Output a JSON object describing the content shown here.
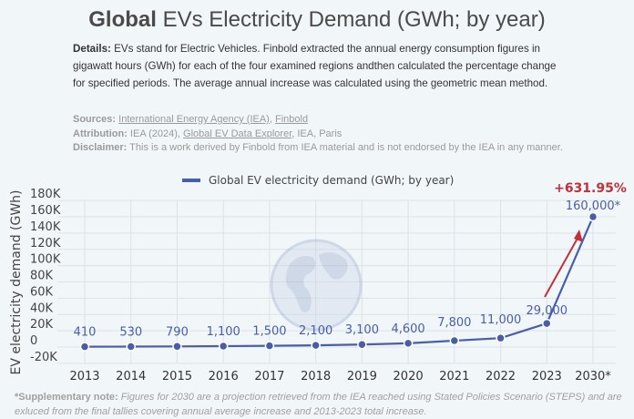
{
  "header": {
    "title_bold": "Global",
    "title_rest": " EVs Electricity Demand (GWh; by year)"
  },
  "details": {
    "label": "Details:",
    "text": " EVs stand for Electric Vehicles. Finbold extracted the annual energy consumption figures in gigawatt hours (GWh) for each of the four examined regions andthen calculated the percentage change for specified periods. The average annual increase was calculated using the geometric mean method."
  },
  "meta": {
    "sources_label": "Sources:",
    "source1": "International Energy Agency (IEA)",
    "sep": ", ",
    "source2": "Finbold",
    "attribution_label": "Attribution:",
    "attr_pre": " IEA (2024), ",
    "attr_link": "Global EV Data Explorer",
    "attr_post": ", IEA, Paris",
    "disclaimer_label": "Disclaimer:",
    "disclaimer_text": " This is a work derived by Finbold from IEA material and is not endorsed by the IEA in any manner."
  },
  "note": {
    "label": "*Supplementary note:",
    "text": " Figures for 2030 are a projection retrieved from the IEA  reached using Stated Policies Scenario (STEPS) and are exluced from the final tallies covering annual average increase and 2013-2023 total increase."
  },
  "chart_data": {
    "type": "line",
    "categories": [
      "2013",
      "2014",
      "2015",
      "2016",
      "2017",
      "2018",
      "2019",
      "2020",
      "2021",
      "2022",
      "2023",
      "2030*"
    ],
    "series": [
      {
        "name": "Global EV electricity demand (GWh; by year)",
        "values": [
          410,
          530,
          790,
          1100,
          1500,
          2100,
          3100,
          4600,
          7800,
          11000,
          29000,
          160000
        ],
        "color": "#4a5ea8"
      }
    ],
    "data_labels": [
      "410",
      "530",
      "790",
      "1,100",
      "1,500",
      "2,100",
      "3,100",
      "4,600",
      "7,800",
      "11,000",
      "29,000",
      "160,000*"
    ],
    "ylabel": "EV electricity demand (GWh)",
    "ylim": [
      -20000,
      180000
    ],
    "yticks": [
      "-20K",
      "0",
      "20K",
      "40K",
      "60K",
      "80K",
      "100K",
      "120K",
      "140K",
      "160K",
      "180K"
    ],
    "grid": true,
    "legend": "top",
    "annotation": {
      "text": "+631.95%",
      "color": "#c0313b"
    },
    "watermark": "globe-icon"
  }
}
